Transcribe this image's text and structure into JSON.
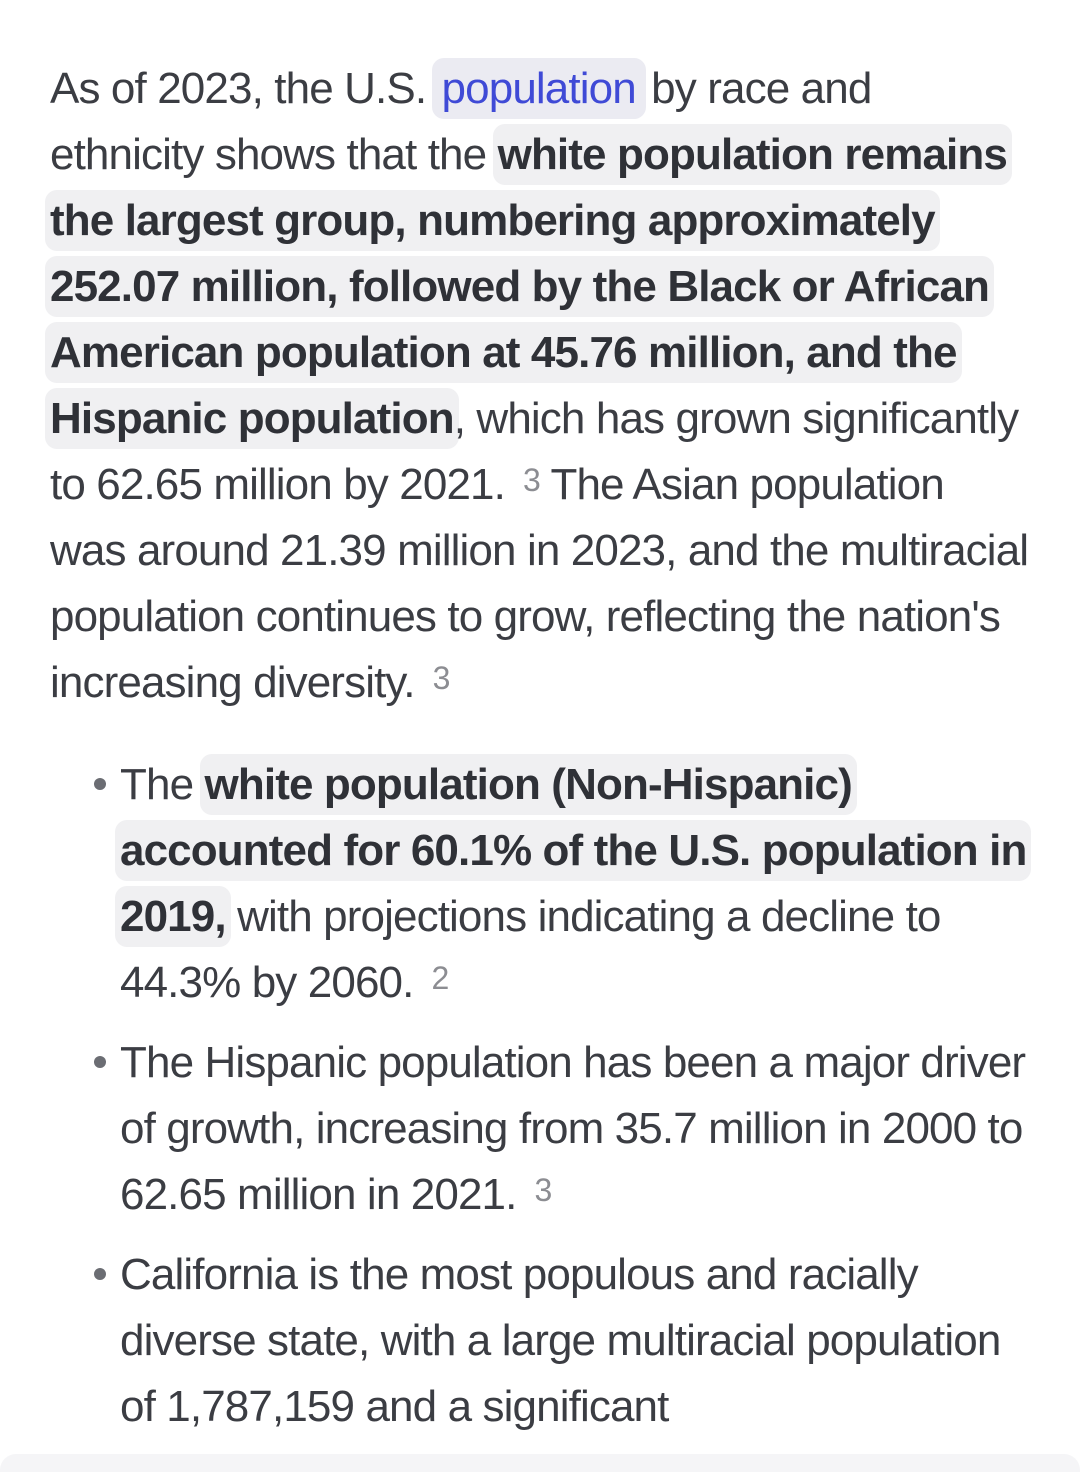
{
  "theme": {
    "page_bg": "#ffffff",
    "text_color": "#3b3d43",
    "bold_color": "#2f3137",
    "link_color": "#3f4ad6",
    "link_pill_bg": "#ebebf2",
    "highlight_bg": "#f0f0f2",
    "citation_color": "#8c8d92",
    "bullet_color": "#6b6d73",
    "scrim_bg": "rgba(243,243,246,0.85)"
  },
  "paragraph": {
    "runs": [
      {
        "text": "As of 2023, the U.S. ",
        "style": "normal"
      },
      {
        "text": "population",
        "style": "link"
      },
      {
        "text": " by race and ethnicity shows that the ",
        "style": "normal"
      },
      {
        "text": "white population remains the largest group, numbering approximately 252.07 million, followed by the Black or African American population at 45.76 million, and the Hispanic population",
        "style": "bold-highlight"
      },
      {
        "text": ", which has grown significantly to 62.65 million by 2021.",
        "style": "normal"
      },
      {
        "text": "3",
        "style": "citation"
      },
      {
        "text": " The Asian population was around 21.39 million in 2023, and the multiracial population continues to grow, reflecting the nation's increasing diversity.",
        "style": "normal"
      },
      {
        "text": "3",
        "style": "citation"
      }
    ]
  },
  "bullets": [
    {
      "runs": [
        {
          "text": "The ",
          "style": "normal"
        },
        {
          "text": "white population (Non-Hispanic) accounted for 60.1% of the U.S. population in 2019,",
          "style": "bold-highlight"
        },
        {
          "text": " with projections indicating a decline to 44.3% by 2060.",
          "style": "normal"
        },
        {
          "text": "2",
          "style": "citation"
        }
      ]
    },
    {
      "runs": [
        {
          "text": "The Hispanic population has been a major driver of growth, increasing from 35.7 million in 2000 to 62.65 million in 2021.",
          "style": "normal"
        },
        {
          "text": "3",
          "style": "citation"
        }
      ]
    },
    {
      "runs": [
        {
          "text": "California is the most populous and racially diverse state, with a large multiracial population of 1,787,159 and a significant",
          "style": "normal"
        }
      ]
    }
  ]
}
